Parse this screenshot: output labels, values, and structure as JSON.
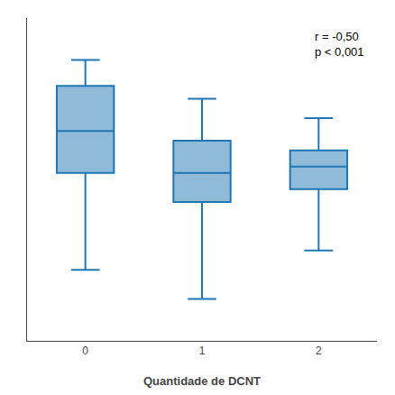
{
  "chart_data": {
    "type": "box",
    "xlabel": "Quantidade de DCNT",
    "annotation": "r = -0,50\np < 0,001",
    "categories": [
      "0",
      "1",
      "2"
    ],
    "whislo": [
      22,
      13,
      28
    ],
    "q1": [
      52,
      43,
      47
    ],
    "med": [
      65,
      52,
      54
    ],
    "q3": [
      79,
      62,
      59
    ],
    "whishi": [
      87,
      75,
      69
    ],
    "ylim": [
      0,
      100
    ],
    "grid": false,
    "tick_labels": "x"
  }
}
